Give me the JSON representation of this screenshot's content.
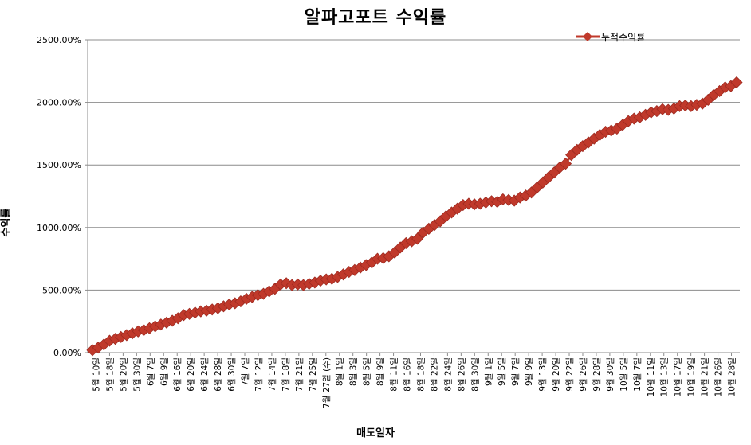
{
  "chart_data": {
    "type": "line",
    "title": "알파고포트 수익률",
    "xlabel": "매도일자",
    "ylabel": "수익률",
    "ylim": [
      0,
      2500
    ],
    "yticks": [
      0,
      500,
      1000,
      1500,
      2000,
      2500
    ],
    "ytick_labels": [
      "0.00%",
      "500.00%",
      "1000.00%",
      "1500.00%",
      "2000.00%",
      "2500.00%"
    ],
    "grid": true,
    "legend_position": "top-right",
    "x_labels": [
      "5월 10일",
      "5월 18일",
      "5월 20일",
      "5월 30일",
      "6월 7일",
      "6월 9일",
      "6월 16일",
      "6월 20일",
      "6월 24일",
      "6월 28일",
      "6월 30일",
      "7월 7일",
      "7월 12일",
      "7월 14일",
      "7월 18일",
      "7월 21일",
      "7월 25일",
      "7월 27일 (수)",
      "8월 1일",
      "8월 3일",
      "8월 5일",
      "8월 9일",
      "8월 11일",
      "8월 16일",
      "8월 18일",
      "8월 22일",
      "8월 24일",
      "8월 26일",
      "8월 30일",
      "9월 1일",
      "9월 5일",
      "9월 7일",
      "9월 9일",
      "9월 13일",
      "9월 20일",
      "9월 22일",
      "9월 26일",
      "9월 28일",
      "9월 30일",
      "10월 5일",
      "10월 7일",
      "10월 11일",
      "10월 13일",
      "10월 17일",
      "10월 19일",
      "10월 21일",
      "10월 26일",
      "10월 28일"
    ],
    "series": [
      {
        "name": "누적수익률",
        "color": "#c0392b",
        "marker": "diamond",
        "values": [
          20,
          40,
          65,
          95,
          110,
          125,
          140,
          155,
          170,
          180,
          195,
          210,
          225,
          240,
          255,
          275,
          300,
          310,
          320,
          330,
          335,
          345,
          355,
          370,
          385,
          395,
          410,
          430,
          445,
          460,
          470,
          490,
          510,
          545,
          555,
          540,
          545,
          540,
          550,
          560,
          575,
          585,
          590,
          605,
          625,
          645,
          660,
          680,
          700,
          720,
          750,
          755,
          770,
          800,
          840,
          875,
          890,
          910,
          960,
          990,
          1020,
          1050,
          1090,
          1120,
          1150,
          1180,
          1190,
          1185,
          1190,
          1200,
          1210,
          1205,
          1225,
          1220,
          1215,
          1240,
          1255,
          1280,
          1320,
          1360,
          1400,
          1440,
          1480,
          1510,
          1580,
          1620,
          1650,
          1680,
          1710,
          1740,
          1765,
          1775,
          1790,
          1820,
          1850,
          1870,
          1880,
          1900,
          1920,
          1930,
          1945,
          1940,
          1950,
          1970,
          1975,
          1970,
          1980,
          1990,
          2020,
          2060,
          2090,
          2120,
          2130,
          2160
        ]
      }
    ]
  }
}
